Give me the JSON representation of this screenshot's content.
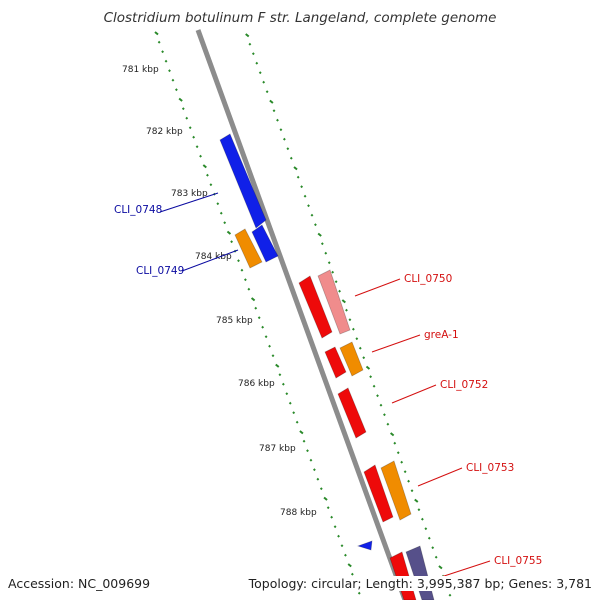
{
  "title": "Clostridium botulinum F str. Langeland, complete genome",
  "footer": {
    "accession": "Accession: NC_009699",
    "summary": "Topology: circular; Length: 3,995,387 bp; Genes: 3,781"
  },
  "colors": {
    "backbone": "#8c8c8c",
    "ruler": "#2a8a2a",
    "label_left": "#0a0aa0",
    "label_right": "#d41010",
    "blue": "#1020e8",
    "orange": "#f08c00",
    "red": "#ee0a0a",
    "pink": "#f08c8c",
    "purple": "#56508a"
  },
  "scale": {
    "labels": [
      "781 kbp",
      "782 kbp",
      "783 kbp",
      "784 kbp",
      "785 kbp",
      "786 kbp",
      "787 kbp",
      "788 kbp"
    ]
  },
  "genes_left": [
    {
      "label": "CLI_0748",
      "color": "blue"
    },
    {
      "label": "CLI_0749",
      "color": "orange"
    }
  ],
  "genes_right": [
    {
      "label": "CLI_0750",
      "color": "red"
    },
    {
      "label": "greA-1",
      "color": "orange"
    },
    {
      "label": "CLI_0752",
      "color": "red"
    },
    {
      "label": "CLI_0753",
      "color": "orange"
    },
    {
      "label": "CLI_0755",
      "color": "red"
    }
  ]
}
